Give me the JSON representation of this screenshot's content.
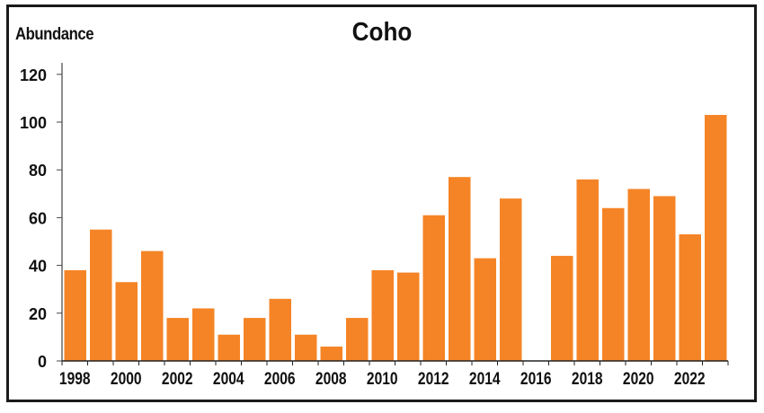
{
  "chart_data": {
    "type": "bar",
    "title": "Coho",
    "xlabel": "",
    "ylabel": "Abundance",
    "ylim": [
      0,
      125
    ],
    "yticks": [
      0,
      20,
      40,
      60,
      80,
      100,
      120
    ],
    "xtick_labels": [
      "1998",
      "2000",
      "2002",
      "2004",
      "2006",
      "2008",
      "2010",
      "2012",
      "2014",
      "2016",
      "2018",
      "2020",
      "2022"
    ],
    "grid": false,
    "legend": null,
    "bar_color": "#f58426",
    "categories": [
      "1998",
      "1999",
      "2000",
      "2001",
      "2002",
      "2003",
      "2004",
      "2005",
      "2006",
      "2007",
      "2008",
      "2009",
      "2010",
      "2011",
      "2012",
      "2013",
      "2014",
      "2015",
      "2016",
      "2017",
      "2018",
      "2019",
      "2020",
      "2021",
      "2022",
      "2023"
    ],
    "values": [
      38,
      55,
      33,
      46,
      18,
      22,
      11,
      18,
      26,
      11,
      6,
      18,
      38,
      37,
      61,
      77,
      43,
      68,
      0,
      44,
      76,
      64,
      72,
      69,
      53,
      103
    ]
  }
}
